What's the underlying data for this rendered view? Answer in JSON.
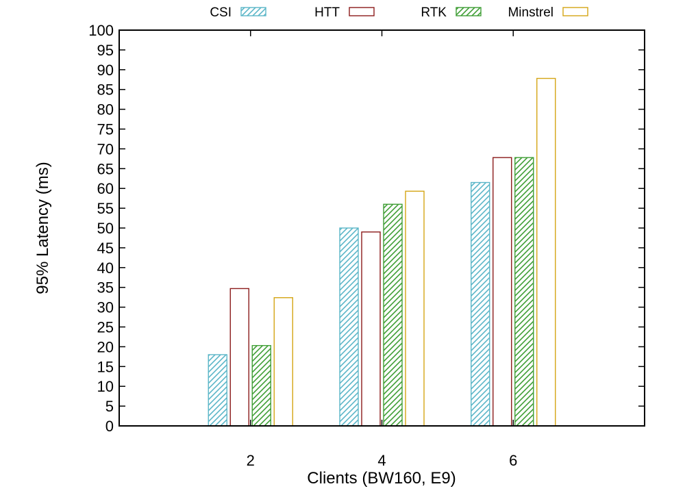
{
  "chart_data": {
    "type": "bar",
    "title": "",
    "xlabel": "Clients (BW160, E9)",
    "ylabel": "95% Latency (ms)",
    "categories": [
      "2",
      "4",
      "6"
    ],
    "ylim": [
      0,
      100
    ],
    "yticks": [
      0,
      5,
      10,
      15,
      20,
      25,
      30,
      35,
      40,
      45,
      50,
      55,
      60,
      65,
      70,
      75,
      80,
      85,
      90,
      95,
      100
    ],
    "grid": false,
    "legend_position": "top",
    "series": [
      {
        "name": "CSI",
        "color": "#5bb6c8",
        "pattern": "hatched",
        "values": [
          18,
          50,
          61.5
        ]
      },
      {
        "name": "HTT",
        "color": "#8b1a1a",
        "pattern": "hollow",
        "values": [
          34.7,
          49,
          67.8
        ]
      },
      {
        "name": "RTK",
        "color": "#3f9e35",
        "pattern": "hatched",
        "values": [
          20.3,
          56,
          67.8
        ]
      },
      {
        "name": "Minstrel",
        "color": "#d4a514",
        "pattern": "hollow",
        "values": [
          32.4,
          59.3,
          87.8
        ]
      }
    ]
  }
}
